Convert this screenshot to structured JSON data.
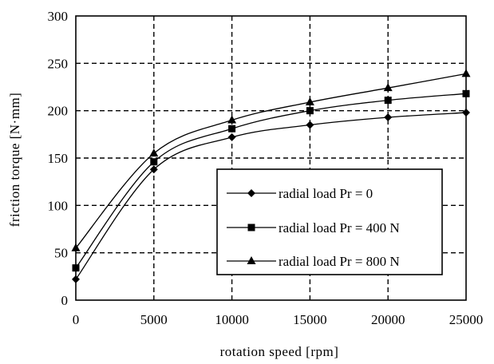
{
  "chart_data": {
    "type": "line",
    "xlabel": "rotation speed [rpm]",
    "ylabel": "friction torque [N·mm]",
    "x": [
      0,
      5000,
      10000,
      15000,
      20000,
      25000
    ],
    "xticks": [
      "0",
      "5000",
      "10000",
      "15000",
      "20000",
      "25000"
    ],
    "yticks": [
      "0",
      "50",
      "100",
      "150",
      "200",
      "250",
      "300"
    ],
    "xlim": [
      0,
      25000
    ],
    "ylim": [
      0,
      300
    ],
    "grid": true,
    "legend_position": "center-right",
    "series": [
      {
        "name": "radial load Pr = 0",
        "marker": "diamond",
        "values": [
          22,
          138,
          172,
          185,
          193,
          198
        ]
      },
      {
        "name": "radial load Pr = 400 N",
        "marker": "square",
        "values": [
          34,
          146,
          181,
          200,
          211,
          218
        ]
      },
      {
        "name": "radial load Pr = 800 N",
        "marker": "triangle",
        "values": [
          55,
          155,
          190,
          209,
          224,
          239
        ]
      }
    ]
  }
}
